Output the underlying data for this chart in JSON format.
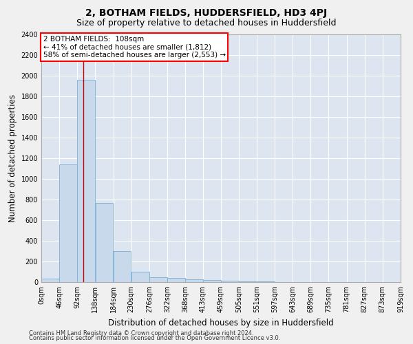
{
  "title": "2, BOTHAM FIELDS, HUDDERSFIELD, HD3 4PJ",
  "subtitle": "Size of property relative to detached houses in Huddersfield",
  "xlabel": "Distribution of detached houses by size in Huddersfield",
  "ylabel": "Number of detached properties",
  "bar_color": "#c8d9ec",
  "bar_edge_color": "#7aafd4",
  "background_color": "#dde6f0",
  "grid_color": "#ffffff",
  "annotation_text_line1": "2 BOTHAM FIELDS:  108sqm",
  "annotation_text_line2": "← 41% of detached houses are smaller (1,812)",
  "annotation_text_line3": "58% of semi-detached houses are larger (2,553) →",
  "vline_x": 108,
  "vline_color": "#cc0000",
  "footer_line1": "Contains HM Land Registry data © Crown copyright and database right 2024.",
  "footer_line2": "Contains public sector information licensed under the Open Government Licence v3.0.",
  "bin_edges": [
    0,
    46,
    92,
    138,
    184,
    230,
    276,
    322,
    368,
    413,
    459,
    505,
    551,
    597,
    643,
    689,
    735,
    781,
    827,
    873,
    919
  ],
  "bar_heights": [
    35,
    1140,
    1960,
    770,
    300,
    100,
    50,
    40,
    30,
    20,
    15,
    10,
    5,
    3,
    2,
    1,
    1,
    1,
    0,
    0
  ],
  "ylim": [
    0,
    2400
  ],
  "yticks": [
    0,
    200,
    400,
    600,
    800,
    1000,
    1200,
    1400,
    1600,
    1800,
    2000,
    2200,
    2400
  ],
  "xtick_labels": [
    "0sqm",
    "46sqm",
    "92sqm",
    "138sqm",
    "184sqm",
    "230sqm",
    "276sqm",
    "322sqm",
    "368sqm",
    "413sqm",
    "459sqm",
    "505sqm",
    "551sqm",
    "597sqm",
    "643sqm",
    "689sqm",
    "735sqm",
    "781sqm",
    "827sqm",
    "873sqm",
    "919sqm"
  ],
  "title_fontsize": 10,
  "subtitle_fontsize": 9,
  "axis_label_fontsize": 8.5,
  "tick_fontsize": 7,
  "annotation_fontsize": 7.5,
  "footer_fontsize": 6
}
